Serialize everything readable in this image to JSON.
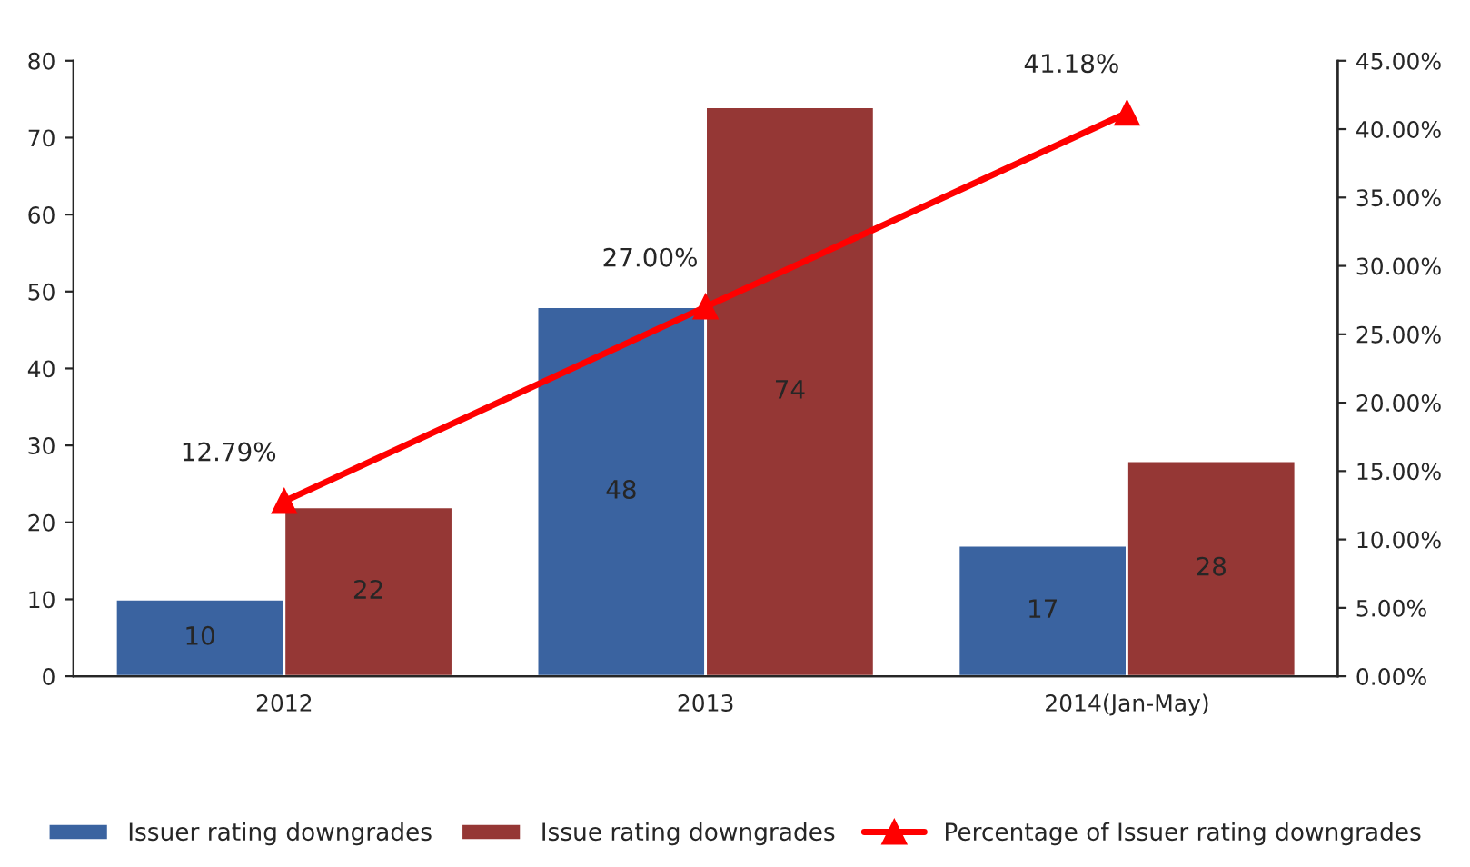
{
  "chart_data": {
    "type": "bar",
    "categories": [
      "2012",
      "2013",
      "2014(Jan-May)"
    ],
    "series": [
      {
        "name": "Issuer rating downgrades",
        "color": "#3a63a0",
        "values": [
          10,
          48,
          17
        ]
      },
      {
        "name": "Issue rating downgrades",
        "color": "#953735",
        "values": [
          22,
          74,
          28
        ]
      },
      {
        "name": "Percentage of Issuer rating downgrades",
        "type": "line",
        "axis": "y2",
        "color": "#ff0000",
        "marker": "triangle",
        "values": [
          12.79,
          27.0,
          41.18
        ],
        "value_labels": [
          "12.79%",
          "27.00%",
          "41.18%"
        ]
      }
    ],
    "data_labels": true,
    "ylim": [
      0,
      80
    ],
    "yticks": [
      0,
      10,
      20,
      30,
      40,
      50,
      60,
      70,
      80
    ],
    "y2lim": [
      0,
      45
    ],
    "y2ticks": [
      {
        "value": 0,
        "label": "0.00%"
      },
      {
        "value": 5,
        "label": "5.00%"
      },
      {
        "value": 10,
        "label": "10.00%"
      },
      {
        "value": 15,
        "label": "15.00%"
      },
      {
        "value": 20,
        "label": "20.00%"
      },
      {
        "value": 25,
        "label": "25.00%"
      },
      {
        "value": 30,
        "label": "30.00%"
      },
      {
        "value": 35,
        "label": "35.00%"
      },
      {
        "value": 40,
        "label": "40.00%"
      },
      {
        "value": 45,
        "label": "45.00%"
      }
    ],
    "grid": false,
    "legend": "bottom"
  }
}
